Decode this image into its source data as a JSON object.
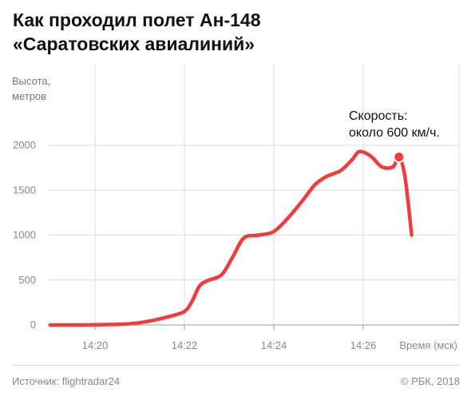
{
  "header": {
    "title_line1": "Как проходил полет Ан-148",
    "title_line2": "«Саратовских авиалиний»"
  },
  "footer": {
    "source": "Источник: flightradar24",
    "copyright": "© РБК, 2018"
  },
  "chart_data": {
    "type": "line",
    "ylabel_lines": [
      "Высота,",
      "метров"
    ],
    "xlabel": "Время (мск)",
    "ylim": [
      0,
      2300
    ],
    "yticks": [
      0,
      500,
      1000,
      1500,
      2000
    ],
    "xtick_labels": [
      "14:20",
      "14:22",
      "14:24",
      "14:26"
    ],
    "grid": true,
    "annotation_lines": [
      "Скорость:",
      "около 600 км/ч."
    ],
    "colors": {
      "line": "#f03c3c",
      "grid": "#dcdcdc",
      "axis": "#999999"
    },
    "series": [
      {
        "x": [
          "14:19:00",
          "14:19:40",
          "14:20:20",
          "14:20:40",
          "14:21:00",
          "14:21:20",
          "14:21:40",
          "14:22:00",
          "14:22:10",
          "14:22:20",
          "14:22:30",
          "14:22:50",
          "14:23:05",
          "14:23:20",
          "14:23:40",
          "14:24:00",
          "14:24:20",
          "14:24:40",
          "14:24:55",
          "14:25:10",
          "14:25:30",
          "14:25:45",
          "14:25:55",
          "14:26:10",
          "14:26:25",
          "14:26:40",
          "14:26:48",
          "14:26:56",
          "14:27:05"
        ],
        "y": [
          0,
          0,
          5,
          10,
          25,
          55,
          95,
          150,
          260,
          430,
          490,
          560,
          760,
          970,
          1000,
          1040,
          1200,
          1400,
          1560,
          1650,
          1720,
          1840,
          1930,
          1880,
          1760,
          1760,
          1870,
          1650,
          1000
        ]
      }
    ],
    "marker": {
      "x": "14:26:48",
      "y": 1870
    }
  }
}
